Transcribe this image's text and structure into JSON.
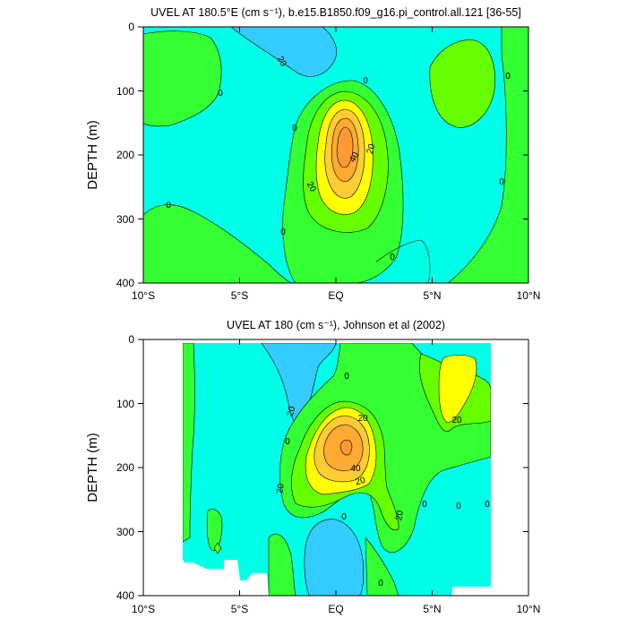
{
  "chart_data": [
    {
      "type": "contour",
      "title": "UVEL AT 180.5°E (cm s⁻¹), b.e15.B1850.f09_g16.pi_control.all.121 [36-55]",
      "ylabel": "DEPTH (m)",
      "xlim": [
        -10,
        10
      ],
      "ylim": [
        400,
        0
      ],
      "x_ticks": [
        "10°S",
        "5°S",
        "EQ",
        "5°N",
        "10°N"
      ],
      "y_ticks": [
        "0",
        "100",
        "200",
        "300",
        "400"
      ],
      "contour_labels": [
        "20",
        "0",
        "0",
        "0",
        "0",
        "20",
        "40",
        "20",
        "0",
        "0",
        "0",
        "0"
      ],
      "core_max_approx_cm_s": 70,
      "core_location": {
        "lat": 0,
        "depth": 175
      },
      "colors": {
        "neg30": "#33ccff",
        "neg10": "#00ffe6",
        "pos10": "#33ff33",
        "pos30": "#66ff00",
        "pos50": "#ffff00",
        "pos60": "#ffcc33",
        "pos70": "#ff9933"
      }
    },
    {
      "type": "contour",
      "title": "UVEL AT 180 (cm s⁻¹), Johnson et al (2002)",
      "ylabel": "DEPTH (m)",
      "xlim": [
        -10,
        10
      ],
      "ylim": [
        400,
        0
      ],
      "x_ticks": [
        "10°S",
        "5°S",
        "EQ",
        "5°N",
        "10°N"
      ],
      "y_ticks": [
        "0",
        "100",
        "200",
        "300",
        "400"
      ],
      "contour_labels": [
        "20",
        "0",
        "20",
        "0",
        "40",
        "20",
        "20",
        "20",
        "0",
        "0",
        "0",
        "20",
        "0",
        "0"
      ],
      "core_max_approx_cm_s": 80,
      "core_location": {
        "lat": 0.5,
        "depth": 165
      },
      "colors": {
        "neg30": "#33ccff",
        "neg10": "#00ffe6",
        "pos10": "#33ff33",
        "pos30": "#66ff00",
        "pos50": "#ffff00",
        "pos60": "#ffcc33",
        "pos70": "#ff9933"
      }
    }
  ]
}
